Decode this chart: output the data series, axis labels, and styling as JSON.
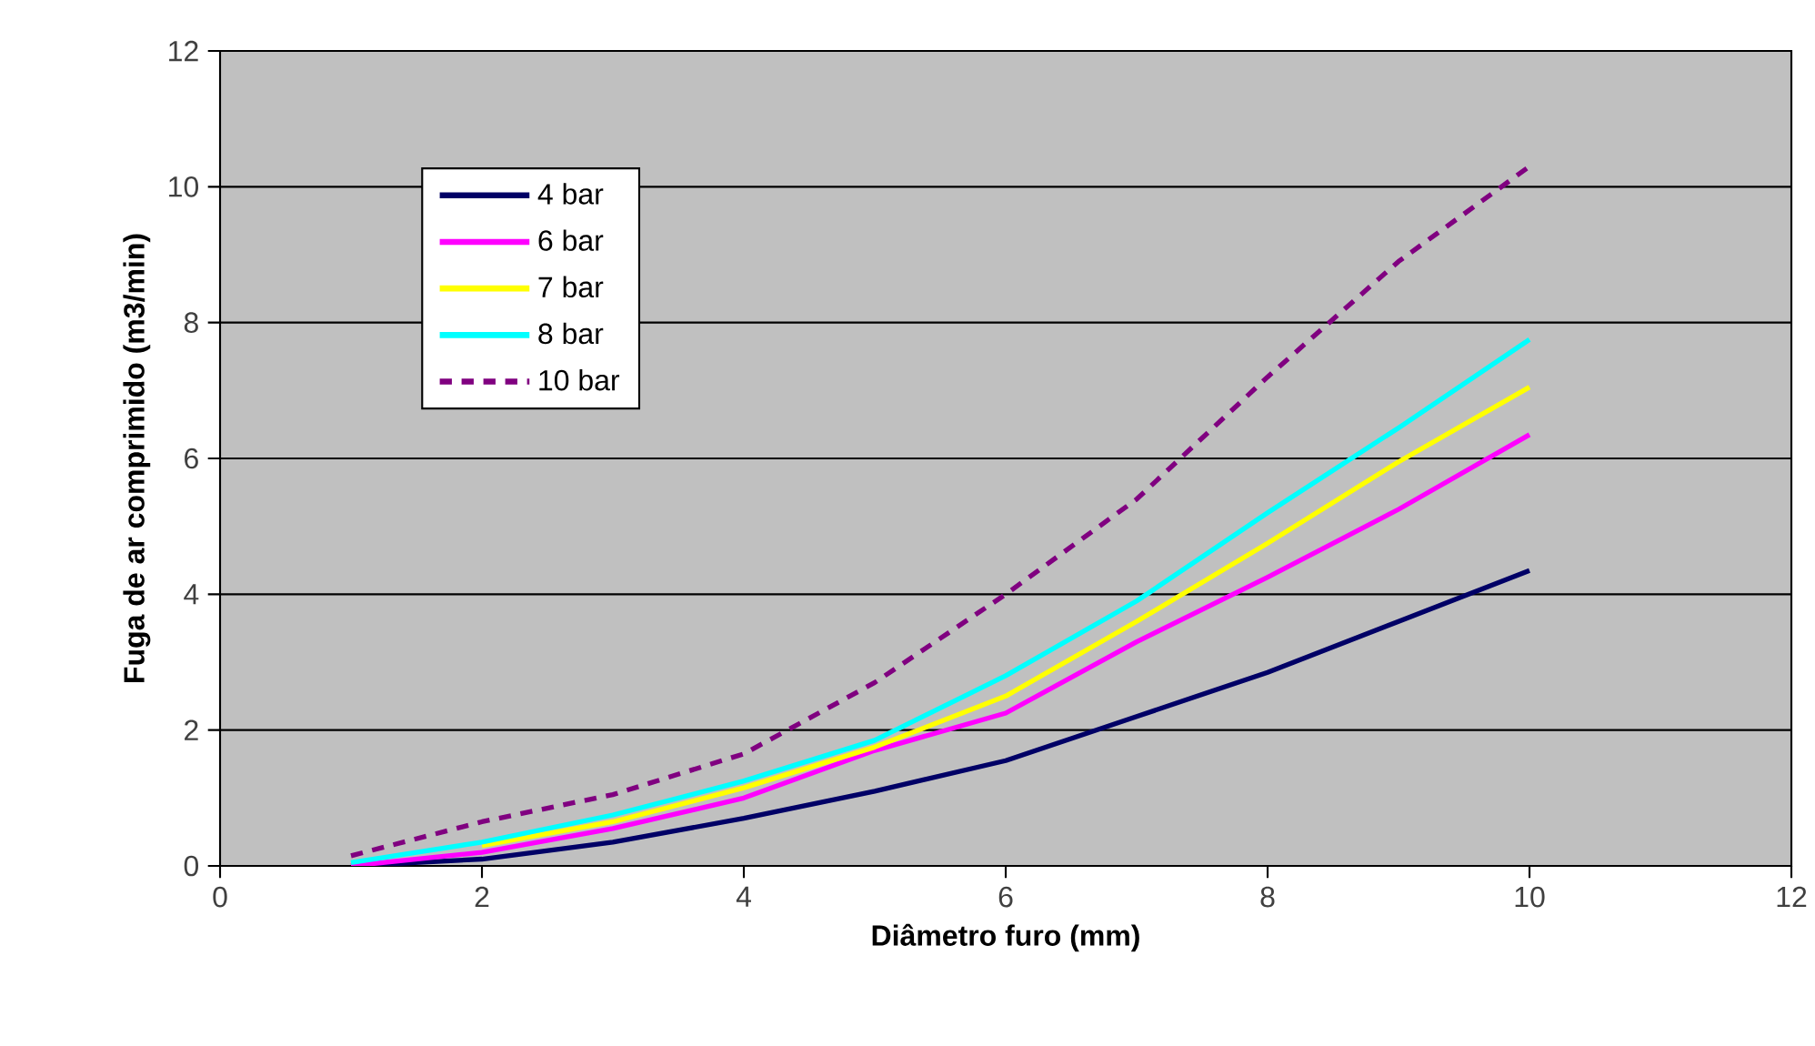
{
  "chart_data": {
    "type": "line",
    "xlabel": "Diâmetro furo (mm)",
    "ylabel": "Fuga de ar comprimido (m3/min)",
    "x": [
      1,
      2,
      3,
      4,
      5,
      6,
      7,
      8,
      9,
      10
    ],
    "series": [
      {
        "name": "4 bar",
        "color": "#000066",
        "values": [
          0,
          0.1,
          0.35,
          0.7,
          1.1,
          1.55,
          2.2,
          2.85,
          3.6,
          4.35
        ]
      },
      {
        "name": "6 bar",
        "color": "#ff00ff",
        "values": [
          0,
          0.2,
          0.55,
          1.0,
          1.7,
          2.25,
          3.3,
          4.25,
          5.25,
          6.35
        ]
      },
      {
        "name": "7 bar",
        "color": "#ffff00",
        "values": [
          null,
          0.3,
          0.65,
          1.15,
          1.75,
          2.5,
          3.6,
          4.75,
          5.95,
          7.05
        ]
      },
      {
        "name": "8 bar",
        "color": "#00ffff",
        "values": [
          0.05,
          0.35,
          0.75,
          1.25,
          1.85,
          2.8,
          3.9,
          5.2,
          6.45,
          7.75
        ]
      },
      {
        "name": "10 bar",
        "color": "#800080",
        "line_style": "dashed",
        "values": [
          0.15,
          0.65,
          1.05,
          1.65,
          2.7,
          4.0,
          5.4,
          7.2,
          8.9,
          10.3
        ]
      }
    ],
    "xlim": [
      0,
      12
    ],
    "ylim": [
      0,
      12
    ],
    "xticks": [
      0,
      2,
      4,
      6,
      8,
      10,
      12
    ],
    "yticks": [
      0,
      2,
      4,
      6,
      8,
      10,
      12
    ],
    "grid": "y",
    "legend": "top left",
    "marker": "none"
  }
}
